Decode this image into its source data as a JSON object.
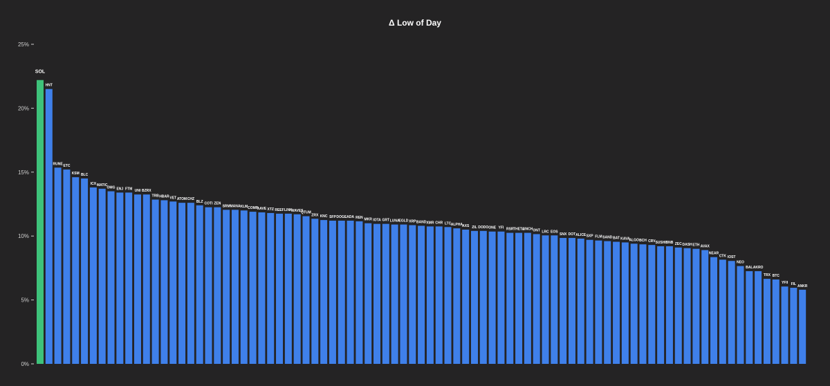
{
  "chart_data": {
    "type": "bar",
    "title": "Δ Low of Day",
    "xlabel": "",
    "ylabel": "",
    "ylim": [
      0,
      25
    ],
    "yticks": [
      0,
      5,
      10,
      15,
      20,
      25
    ],
    "ytick_labels": [
      "0%",
      "5%",
      "10%",
      "15%",
      "20%",
      "25%"
    ],
    "grid": false,
    "legend": "none",
    "colors": {
      "bar": "#3f80ea",
      "highlight": "#3ec27a",
      "background": "#242324",
      "text": "#ffffff",
      "axis": "#cfcfcf"
    },
    "highlight_category": "SOL",
    "categories": [
      "SOL",
      "HNT",
      "RUNE",
      "ETC",
      "KSM",
      "BLC",
      "ICX",
      "MATIC",
      "OMG",
      "ENJ",
      "FTM",
      "UNI",
      "BZRX",
      "TRB",
      "HBAR",
      "VET",
      "ATOM",
      "CHZ",
      "BLZ",
      "COTI",
      "ZEN",
      "SRM",
      "MANA",
      "KLM",
      "COMP",
      "AAVE",
      "XTZ",
      "REEF",
      "LINK",
      "WAVES",
      "QTUM",
      "ZRX",
      "KNC",
      "SFP",
      "DOGE",
      "ADA",
      "REN",
      "MKR",
      "IOTA",
      "GRT",
      "LUNA",
      "EGLD",
      "XRP",
      "BAND",
      "XMR",
      "CHR",
      "LTC",
      "ALPHA",
      "AXS",
      "ZIL",
      "DODO",
      "ONE",
      "YFI",
      "RSR",
      "THETA",
      "1INCH",
      "ONT",
      "LRC",
      "EOS",
      "SNX",
      "DOT",
      "ALICE",
      "SXP",
      "FLM",
      "SAND",
      "BAT",
      "KAVA",
      "ALGO",
      "BCH",
      "CRV",
      "SUSHI",
      "BNB",
      "ZEC",
      "DASH",
      "ETH",
      "AVAX",
      "NEAR",
      "CTK",
      "IOST",
      "NEO",
      "BAL",
      "AKRO",
      "TRX",
      "BTC",
      "YFII",
      "FIL",
      "ANKR"
    ],
    "values": [
      22.2,
      21.5,
      15.35,
      15.2,
      14.6,
      14.5,
      13.8,
      13.7,
      13.5,
      13.4,
      13.4,
      13.25,
      13.25,
      12.85,
      12.8,
      12.7,
      12.6,
      12.6,
      12.4,
      12.25,
      12.25,
      12.05,
      12.05,
      12.0,
      11.9,
      11.85,
      11.8,
      11.75,
      11.75,
      11.7,
      11.55,
      11.35,
      11.25,
      11.2,
      11.2,
      11.2,
      11.15,
      11.0,
      10.95,
      10.95,
      10.9,
      10.9,
      10.85,
      10.8,
      10.75,
      10.75,
      10.7,
      10.6,
      10.5,
      10.4,
      10.4,
      10.35,
      10.35,
      10.25,
      10.25,
      10.25,
      10.15,
      10.05,
      10.05,
      9.85,
      9.85,
      9.8,
      9.7,
      9.65,
      9.6,
      9.55,
      9.5,
      9.4,
      9.35,
      9.3,
      9.2,
      9.2,
      9.1,
      9.05,
      9.0,
      8.9,
      8.35,
      8.15,
      8.05,
      7.65,
      7.25,
      7.25,
      6.65,
      6.6,
      6.05,
      5.95,
      5.8
    ]
  }
}
